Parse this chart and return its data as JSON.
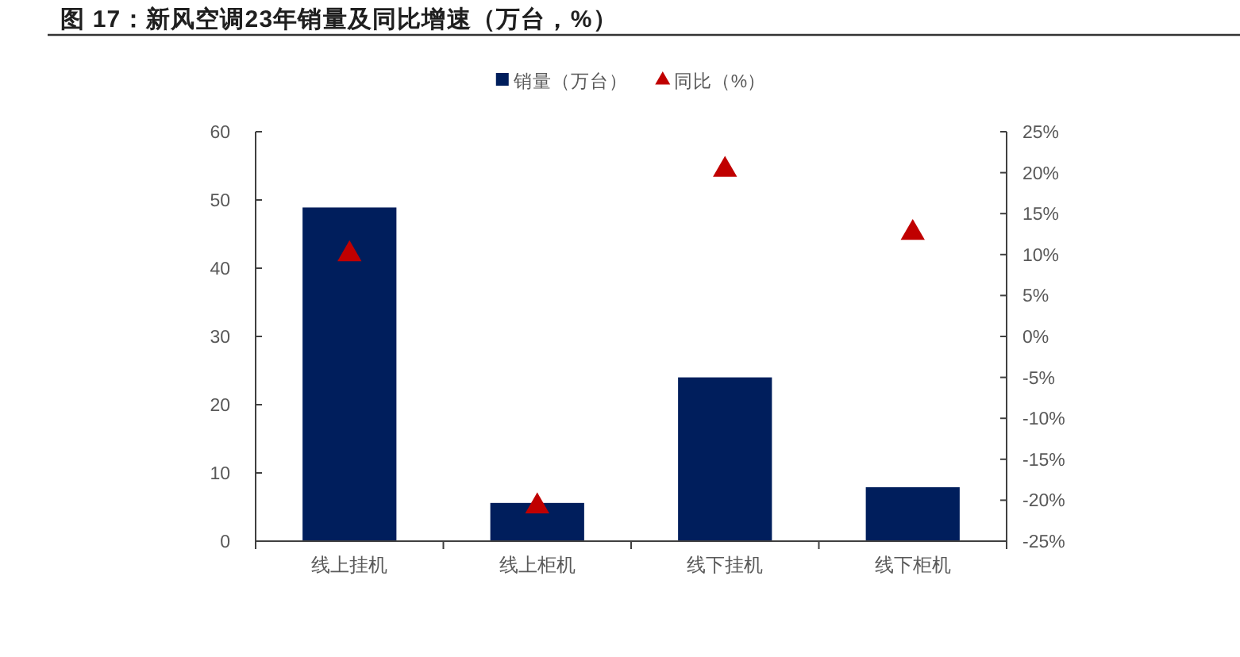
{
  "chart_data": {
    "type": "bar",
    "title": "图 17：新风空调23年销量及同比增速（万台，%）",
    "categories": [
      "线上挂机",
      "线上柜机",
      "线下挂机",
      "线下柜机"
    ],
    "series": [
      {
        "name": "销量（万台）",
        "color": "#001e5c",
        "values": [
          48.9,
          5.6,
          24.0,
          7.9
        ]
      },
      {
        "name": "同比（%）",
        "type": "scatter",
        "axis": "y2",
        "marker": "triangle",
        "color": "#c00000",
        "values": [
          10.2,
          -20.6,
          20.5,
          12.8
        ]
      }
    ],
    "ylim": [
      0,
      60
    ],
    "yticks": [
      0,
      10,
      20,
      30,
      40,
      50,
      60
    ],
    "y2lim": [
      -25,
      25
    ],
    "y2ticks": [
      {
        "value": -25,
        "label": "-25%"
      },
      {
        "value": -20,
        "label": "-20%"
      },
      {
        "value": -15,
        "label": "-15%"
      },
      {
        "value": -10,
        "label": "-10%"
      },
      {
        "value": -5,
        "label": "-5%"
      },
      {
        "value": 0,
        "label": "0%"
      },
      {
        "value": 5,
        "label": "5%"
      },
      {
        "value": 10,
        "label": "10%"
      },
      {
        "value": 15,
        "label": "15%"
      },
      {
        "value": 20,
        "label": "20%"
      },
      {
        "value": 25,
        "label": "25%"
      }
    ],
    "legend": "top"
  }
}
